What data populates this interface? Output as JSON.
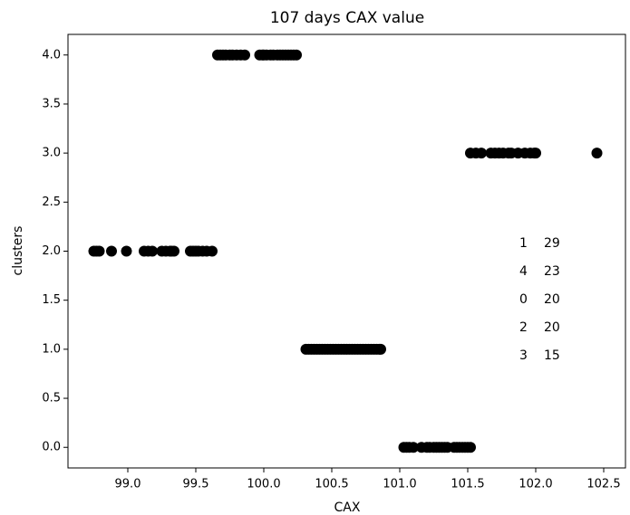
{
  "chart_data": {
    "type": "scatter",
    "title": "107 days CAX value",
    "x_label": "CAX",
    "y_label": "clusters",
    "color": "#000000",
    "x": [
      98.75,
      98.77,
      98.79,
      98.88,
      98.99,
      99.12,
      99.15,
      99.18,
      99.25,
      99.28,
      99.31,
      99.32,
      99.34,
      99.46,
      99.48,
      99.5,
      99.52,
      99.55,
      99.58,
      99.62,
      99.66,
      99.68,
      99.7,
      99.72,
      99.75,
      99.77,
      99.8,
      99.83,
      99.86,
      99.97,
      99.99,
      100.0,
      100.02,
      100.05,
      100.07,
      100.1,
      100.12,
      100.14,
      100.16,
      100.18,
      100.2,
      100.22,
      100.24,
      100.31,
      100.33,
      100.35,
      100.37,
      100.39,
      100.41,
      100.43,
      100.45,
      100.47,
      100.49,
      100.51,
      100.53,
      100.55,
      100.57,
      100.59,
      100.61,
      100.63,
      100.65,
      100.67,
      100.69,
      100.71,
      100.73,
      100.75,
      100.77,
      100.79,
      100.81,
      100.83,
      100.85,
      100.86,
      101.03,
      101.05,
      101.07,
      101.1,
      101.16,
      101.2,
      101.22,
      101.25,
      101.27,
      101.29,
      101.31,
      101.33,
      101.35,
      101.4,
      101.42,
      101.44,
      101.46,
      101.48,
      101.5,
      101.52,
      101.52,
      101.56,
      101.6,
      101.67,
      101.7,
      101.73,
      101.76,
      101.8,
      101.82,
      101.87,
      101.92,
      101.96,
      101.99,
      102.0,
      102.45
    ],
    "values": [
      2,
      2,
      2,
      2,
      2,
      2,
      2,
      2,
      2,
      2,
      2,
      2,
      2,
      2,
      2,
      2,
      2,
      2,
      2,
      2,
      4,
      4,
      4,
      4,
      4,
      4,
      4,
      4,
      4,
      4,
      4,
      4,
      4,
      4,
      4,
      4,
      4,
      4,
      4,
      4,
      4,
      4,
      4,
      1,
      1,
      1,
      1,
      1,
      1,
      1,
      1,
      1,
      1,
      1,
      1,
      1,
      1,
      1,
      1,
      1,
      1,
      1,
      1,
      1,
      1,
      1,
      1,
      1,
      1,
      1,
      1,
      1,
      0,
      0,
      0,
      0,
      0,
      0,
      0,
      0,
      0,
      0,
      0,
      0,
      0,
      0,
      0,
      0,
      0,
      0,
      0,
      0,
      3,
      3,
      3,
      3,
      3,
      3,
      3,
      3,
      3,
      3,
      3,
      3,
      3,
      3,
      3
    ],
    "xlim": [
      98.56,
      102.66
    ],
    "ylim": [
      -0.21,
      4.21
    ],
    "xticks": [
      {
        "value": 99,
        "label": "99.0"
      },
      99.5,
      {
        "value": 100,
        "label": "100.0"
      },
      100.5,
      {
        "value": 101,
        "label": "101.0"
      },
      101.5,
      {
        "value": 102,
        "label": "102.0"
      },
      102.5
    ],
    "yticks": [
      {
        "value": 0,
        "label": "0.0"
      },
      0.5,
      {
        "value": 1,
        "label": "1.0"
      },
      1.5,
      {
        "value": 2,
        "label": "2.0"
      },
      2.5,
      {
        "value": 3,
        "label": "3.0"
      },
      3.5,
      {
        "value": 4,
        "label": "4.0"
      }
    ],
    "annotation": {
      "labels": [
        1,
        4,
        0,
        2,
        3
      ],
      "counts": [
        29,
        23,
        20,
        20,
        15
      ]
    }
  }
}
